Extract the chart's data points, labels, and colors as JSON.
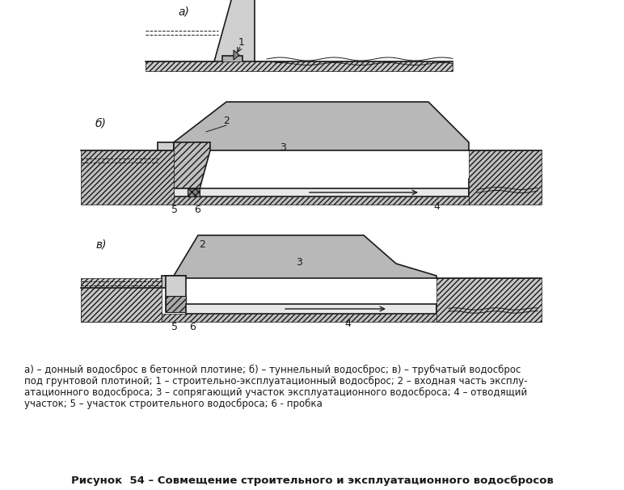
{
  "background_color": "#ffffff",
  "fig_width": 7.72,
  "fig_height": 6.06,
  "caption_lines": [
    "а) – донный водосброс в бетонной плотине; б) – туннельный водосброс; в) – трубчатый водосброс",
    "под грунтовой плотиной; 1 – строительно-эксплуатационный водосброс; 2 – входная часть эксплу-",
    "атационного водосброса; 3 – сопрягающий участок эксплуатационного водосброса; 4 – отводящий",
    "участок; 5 – участок строительного водосброса; 6 - пробка"
  ],
  "figure_title": "Рисунок  54 – Совмещение строительного и эксплуатационного водосбросов",
  "line_color": "#1a1a1a",
  "hatch_color": "#555555",
  "label_color": "#1a1a1a"
}
